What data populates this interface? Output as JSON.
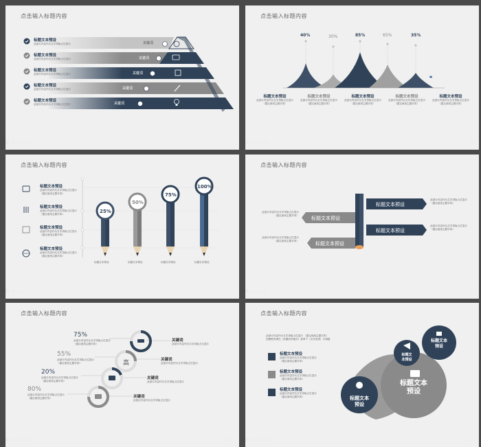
{
  "colors": {
    "navy": "#2f4258",
    "gray": "#888888",
    "light_gray": "#c8c8c8",
    "slide_bg": "#f0f0f0",
    "frame": "#4a4a4a"
  },
  "slide_title": "点击输入标题内容",
  "footer_time": "00:00",
  "slides": [
    {
      "number": "25",
      "items": [
        {
          "title": "标题文本预设",
          "desc": "此部分内容作为文字排版占位显示",
          "note": "（建议使用主题字体）",
          "key": "关键词"
        },
        {
          "title": "标题文本预设",
          "desc": "此部分内容作为文字排版占位显示",
          "note": "（建议使用主题字体）",
          "key": "关键词"
        },
        {
          "title": "标题文本预设",
          "desc": "此部分内容作为文字排版占位显示",
          "note": "（建议使用主题字体）",
          "key": "关键词"
        },
        {
          "title": "标题文本预设",
          "desc": "此部分内容作为文字排版占位显示",
          "note": "（建议使用主题字体）",
          "key": "关键词"
        },
        {
          "title": "标题文本预设",
          "desc": "此部分内容作为文字排版占位显示",
          "note": "（建议使用主题字体）",
          "key": "关键词"
        }
      ]
    },
    {
      "number": "26",
      "peaks": [
        "40%",
        "30%",
        "85%",
        "65%",
        "35%"
      ],
      "items": [
        {
          "title": "标题文本预设",
          "desc": "此部分内容作为文字排版占位显示",
          "note": "（建议使用主题字体）"
        },
        {
          "title": "标题文本预设",
          "desc": "此部分内容作为文字排版占位显示",
          "note": "（建议使用主题字体）"
        },
        {
          "title": "标题文本预设",
          "desc": "此部分内容作为文字排版占位显示",
          "note": "（建议使用主题字体）"
        },
        {
          "title": "标题文本预设",
          "desc": "此部分内容作为文字排版占位显示",
          "note": "（建议使用主题字体）"
        },
        {
          "title": "标题文本预设",
          "desc": "此部分内容作为文字排版占位显示",
          "note": "（建议使用主题字体）"
        }
      ]
    },
    {
      "number": "27",
      "pencils": [
        "25%",
        "50%",
        "75%",
        "100%"
      ],
      "pencil_label": "标题文本预设",
      "items": [
        {
          "title": "标题文本预设",
          "desc": "此部分内容作为文字排版占位显示",
          "note": "（建议使用主题字体）"
        },
        {
          "title": "标题文本预设",
          "desc": "此部分内容作为文字排版占位显示",
          "note": "（建议使用主题字体）"
        },
        {
          "title": "标题文本预设",
          "desc": "此部分内容作为文字排版占位显示",
          "note": "（建议使用主题字体）"
        },
        {
          "title": "标题文本预设",
          "desc": "此部分内容作为文字排版占位显示",
          "note": "（建议使用主题字体）"
        }
      ]
    },
    {
      "number": "28",
      "arrows": [
        "标题文本预设",
        "标题文本预设",
        "标题文本预设",
        "标题文本预设"
      ],
      "desc": "此部分内容作为文字排版占位显示",
      "note": "（建议使用主题字体）"
    },
    {
      "number": "29",
      "percents": [
        "75%",
        "55%",
        "20%",
        "80%"
      ],
      "key": "关键词",
      "center_char": "高",
      "desc": "此部分内容作为文字排版占位显示",
      "note": "（建议使用主题字体）"
    },
    {
      "number": "30",
      "intro1": "此部分内容作为文字排版占位显示 （建议使用主题字体）",
      "intro2": "如需更改请在（设置形状格式）菜单下（文本选项）中调整",
      "items": [
        {
          "title": "标题文本预设",
          "desc": "此部分内容作为文字排版占位显示",
          "note": "（建议使用主题字体）"
        },
        {
          "title": "标题文本预设",
          "desc": "此部分内容作为文字排版占位显示",
          "note": "（建议使用主题字体）"
        },
        {
          "title": "标题文本预设",
          "desc": "此部分内容作为文字排版占位显示",
          "note": "（建议使用主题字体）"
        }
      ],
      "bubble_big": [
        "标题文本",
        "预设"
      ],
      "bubble_small1": [
        "标题文本",
        "预设"
      ],
      "bubble_small2": [
        "标题文",
        "本预设"
      ],
      "bubble_left": [
        "标题文本",
        "预设"
      ]
    }
  ]
}
